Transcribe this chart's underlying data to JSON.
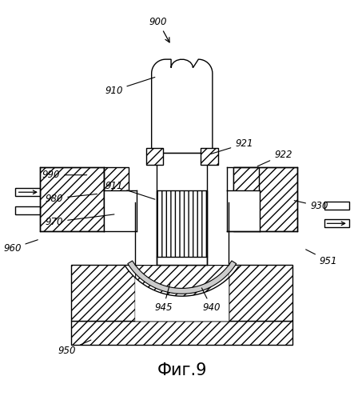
{
  "title": "Фиг.9",
  "labels": {
    "900": [
      190,
      478,
      155,
      472
    ],
    "910": [
      175,
      390,
      130,
      375
    ],
    "911": [
      180,
      340,
      130,
      325
    ],
    "921": [
      268,
      298,
      295,
      312
    ],
    "922": [
      310,
      285,
      335,
      298
    ],
    "930": [
      360,
      248,
      385,
      240
    ],
    "940": [
      248,
      108,
      262,
      90
    ],
    "945": [
      210,
      118,
      205,
      90
    ],
    "950": [
      108,
      68,
      88,
      55
    ],
    "951": [
      368,
      175,
      390,
      162
    ],
    "960": [
      42,
      192,
      20,
      180
    ],
    "970": [
      142,
      228,
      75,
      218
    ],
    "980": [
      118,
      252,
      75,
      248
    ],
    "990": [
      105,
      278,
      70,
      278
    ]
  },
  "bg_color": "#ffffff",
  "lc": "#000000",
  "lw": 1.0,
  "figsize": [
    4.48,
    5.0
  ],
  "dpi": 100
}
